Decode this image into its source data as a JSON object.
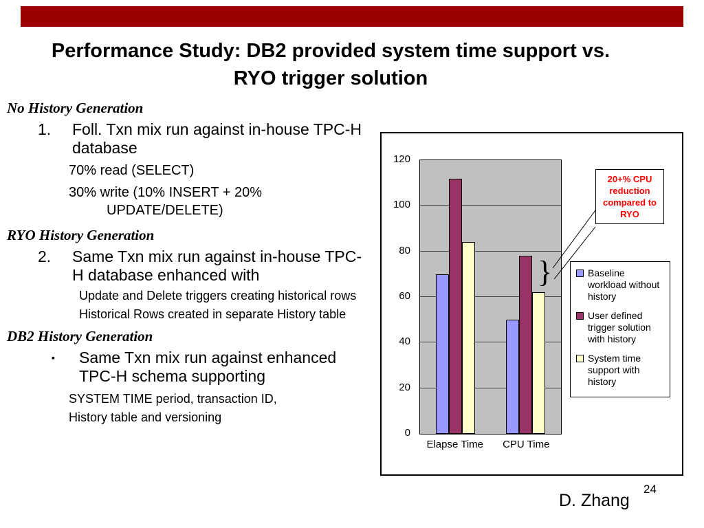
{
  "slide": {
    "title_line1": "Performance Study: DB2 provided system time support vs.",
    "title_line2": "RYO trigger solution",
    "accent_color": "#990000",
    "footer_author": "D. Zhang",
    "page_number": "24"
  },
  "content": {
    "section1": {
      "heading": "No History Generation",
      "item_number": "1.",
      "item_text": "Foll. Txn mix run against in-house TPC-H database",
      "sub1": "70% read (SELECT)",
      "sub2": "30% write (10% INSERT + 20% UPDATE/DELETE)"
    },
    "section2": {
      "heading": "RYO History Generation",
      "item_number": "2.",
      "item_text": "Same Txn mix run against in-house TPC-H database enhanced with",
      "sub1": "Update and Delete triggers creating historical rows",
      "sub2": "Historical Rows created in separate History table"
    },
    "section3": {
      "heading": "DB2 History Generation",
      "bullet": "▪",
      "item_text": "Same Txn mix run against enhanced TPC-H schema supporting",
      "sub1": "SYSTEM TIME period, transaction ID,",
      "sub2": "History table and versioning"
    }
  },
  "chart_data": {
    "type": "bar",
    "title": "",
    "xlabel": "",
    "ylabel": "",
    "categories": [
      "Elapse Time",
      "CPU Time"
    ],
    "series": [
      {
        "name": "Baseline workload without history",
        "color": "#9999FF",
        "values": [
          70,
          50
        ]
      },
      {
        "name": "User defined trigger solution with history",
        "color": "#993366",
        "values": [
          112,
          78
        ]
      },
      {
        "name": "System time support with history",
        "color": "#FFFFCC",
        "values": [
          84,
          62
        ]
      }
    ],
    "ylim": [
      0,
      120
    ],
    "yticks": [
      0,
      20,
      40,
      60,
      80,
      100,
      120
    ],
    "grid": true,
    "legend_position": "right",
    "plot_background": "#C0C0C0",
    "annotation": "20+% CPU reduction compared to RYO",
    "brace_glyph": "}"
  }
}
